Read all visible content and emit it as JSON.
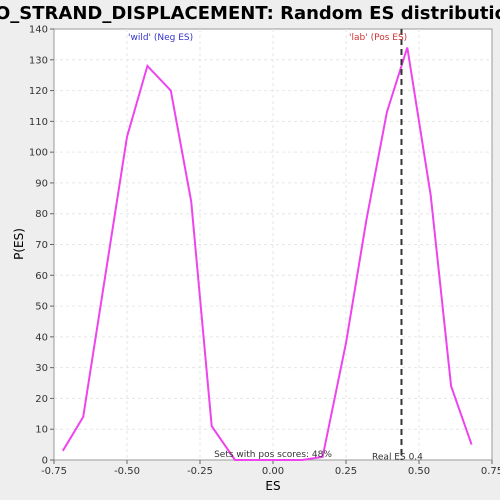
{
  "chart_data": {
    "type": "line",
    "title": "GO_STRAND_DISPLACEMENT: Random ES distribution",
    "xlabel": "ES",
    "ylabel": "P(ES)",
    "xlim": [
      -0.75,
      0.75
    ],
    "ylim": [
      0,
      140
    ],
    "xticks": [
      -0.75,
      -0.5,
      -0.25,
      0.0,
      0.25,
      0.5,
      0.75
    ],
    "xtick_labels": [
      "-0.75",
      "-0.50",
      "-0.25",
      "0.00",
      "0.25",
      "0.50",
      "0.75"
    ],
    "yticks": [
      0,
      10,
      20,
      30,
      40,
      50,
      60,
      70,
      80,
      90,
      100,
      110,
      120,
      130,
      140
    ],
    "grid": true,
    "series": [
      {
        "color": "#ee44ee",
        "x": [
          -0.72,
          -0.65,
          -0.5,
          -0.43,
          -0.35,
          -0.28,
          -0.21,
          -0.13,
          -0.05,
          0.02,
          0.1,
          0.17,
          0.25,
          0.32,
          0.39,
          0.46,
          0.54,
          0.61,
          0.68
        ],
        "y": [
          3,
          14,
          105,
          128,
          120,
          84,
          11,
          0,
          0,
          0,
          0,
          1,
          38,
          78,
          113,
          134,
          86,
          24,
          5
        ]
      }
    ],
    "annotations": {
      "neg_label": "'wild' (Neg ES)",
      "pos_label": "'lab' (Pos ES)",
      "pos_scores_text": "Sets with pos scores: 48%",
      "real_es_text": "Real ES 0.4",
      "real_es_value": 0.44
    },
    "colors": {
      "line": "#ee44ee",
      "neg_label": "#3333cc",
      "pos_label": "#cc3333",
      "real_es_line": "#333333"
    }
  }
}
